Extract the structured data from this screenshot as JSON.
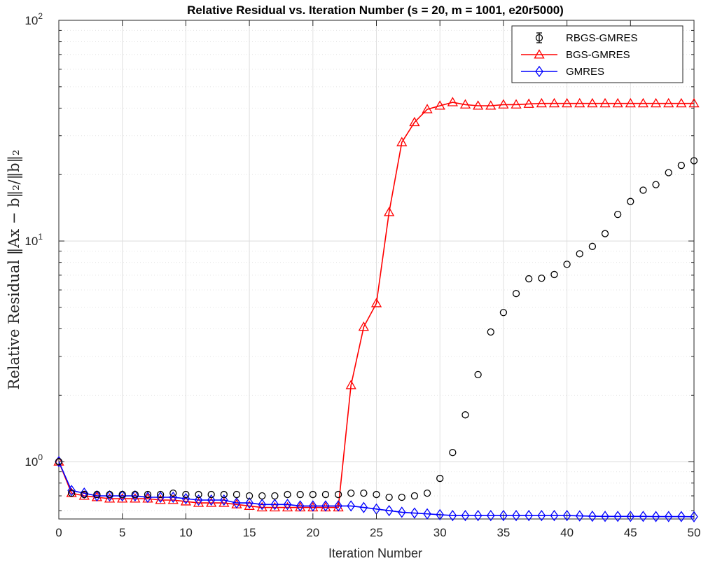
{
  "chart_data": {
    "type": "line",
    "title": "Relative Residual vs. Iteration Number (s = 20, m = 1001, e20r5000)",
    "xlabel": "Iteration Number",
    "ylabel": "Relative Residual ‖Ax − b‖₂/‖b‖₂",
    "xlim": [
      0,
      50
    ],
    "ylim": [
      0.55,
      100
    ],
    "yscale": "log",
    "grid": true,
    "legend_position": "top-right",
    "x_ticks": [
      "0",
      "5",
      "10",
      "15",
      "20",
      "25",
      "30",
      "35",
      "40",
      "45",
      "50"
    ],
    "y_ticks": [
      {
        "value": 1,
        "base": "10",
        "exp": "0"
      },
      {
        "value": 10,
        "base": "10",
        "exp": "1"
      },
      {
        "value": 100,
        "base": "10",
        "exp": "2"
      }
    ],
    "x": [
      0,
      1,
      2,
      3,
      4,
      5,
      6,
      7,
      8,
      9,
      10,
      11,
      12,
      13,
      14,
      15,
      16,
      17,
      18,
      19,
      20,
      21,
      22,
      23,
      24,
      25,
      26,
      27,
      28,
      29,
      30,
      31,
      32,
      33,
      34,
      35,
      36,
      37,
      38,
      39,
      40,
      41,
      42,
      43,
      44,
      45,
      46,
      47,
      48,
      49,
      50
    ],
    "series": [
      {
        "name": "RBGS-GMRES",
        "color": "#000000",
        "marker": "circle",
        "line": false,
        "values": [
          1.0,
          0.72,
          0.71,
          0.71,
          0.71,
          0.71,
          0.71,
          0.71,
          0.71,
          0.72,
          0.71,
          0.71,
          0.71,
          0.71,
          0.71,
          0.7,
          0.7,
          0.7,
          0.71,
          0.71,
          0.71,
          0.71,
          0.71,
          0.72,
          0.72,
          0.71,
          0.69,
          0.69,
          0.7,
          0.72,
          0.84,
          1.1,
          1.63,
          2.48,
          3.87,
          4.74,
          5.78,
          6.74,
          6.78,
          7.05,
          7.84,
          8.75,
          9.45,
          10.8,
          13.2,
          15.1,
          17.0,
          18.0,
          20.4,
          22.0,
          23.1
        ]
      },
      {
        "name": "BGS-GMRES",
        "color": "#ff0000",
        "marker": "triangle",
        "line": true,
        "values": [
          1.0,
          0.72,
          0.7,
          0.69,
          0.68,
          0.68,
          0.68,
          0.68,
          0.67,
          0.67,
          0.66,
          0.65,
          0.65,
          0.65,
          0.64,
          0.63,
          0.62,
          0.62,
          0.62,
          0.62,
          0.62,
          0.62,
          0.62,
          2.22,
          4.08,
          5.22,
          13.5,
          28.0,
          34.5,
          39.5,
          41.0,
          42.5,
          41.5,
          41.0,
          41.0,
          41.5,
          41.5,
          41.8,
          42.0,
          42.0,
          42.0,
          42.0,
          42.0,
          42.0,
          42.0,
          42.0,
          42.0,
          42.0,
          42.0,
          42.0,
          42.0
        ]
      },
      {
        "name": "GMRES",
        "color": "#0000ff",
        "marker": "diamond",
        "line": true,
        "values": [
          1.0,
          0.74,
          0.72,
          0.7,
          0.7,
          0.7,
          0.7,
          0.69,
          0.69,
          0.69,
          0.68,
          0.67,
          0.67,
          0.67,
          0.65,
          0.65,
          0.64,
          0.64,
          0.64,
          0.63,
          0.63,
          0.63,
          0.63,
          0.63,
          0.62,
          0.61,
          0.6,
          0.59,
          0.585,
          0.58,
          0.575,
          0.57,
          0.57,
          0.57,
          0.57,
          0.57,
          0.57,
          0.57,
          0.57,
          0.57,
          0.57,
          0.568,
          0.566,
          0.565,
          0.565,
          0.565,
          0.565,
          0.564,
          0.564,
          0.564,
          0.563
        ]
      }
    ]
  }
}
